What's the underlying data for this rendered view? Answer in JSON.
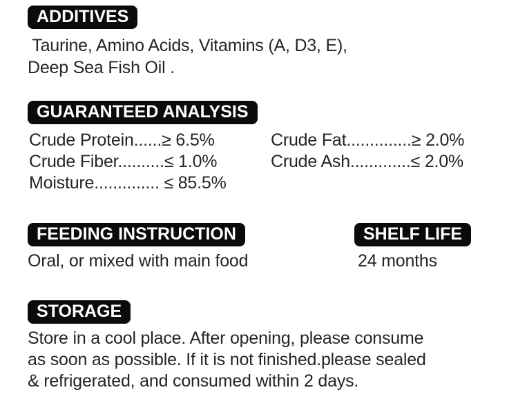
{
  "page": {
    "background": "#ffffff",
    "text_color": "#292324",
    "badge_bg": "#0b0b0b",
    "badge_text_color": "#ffffff"
  },
  "additives": {
    "title": "ADDITIVES",
    "line1": " Taurine, Amino Acids, Vitamins (A, D3, E),",
    "line2": "Deep Sea Fish Oil ."
  },
  "guaranteed_analysis": {
    "title": "GUARANTEED ANALYSIS",
    "left_rows": [
      "Crude Protein......≥ 6.5%",
      "Crude Fiber..........≤ 1.0%",
      "Moisture.............. ≤ 85.5%"
    ],
    "right_rows": [
      "Crude Fat..............≥ 2.0%",
      "Crude Ash.............≤ 2.0%"
    ]
  },
  "feeding_instruction": {
    "title": "FEEDING INSTRUCTION",
    "text": "Oral, or mixed with main food"
  },
  "shelf_life": {
    "title": "SHELF LIFE",
    "text": "24 months"
  },
  "storage": {
    "title": "STORAGE",
    "lines": [
      "Store in a cool place. After opening, please consume",
      "as soon as possible. If it is not finished.please sealed",
      "& refrigerated, and consumed within 2 days."
    ]
  }
}
